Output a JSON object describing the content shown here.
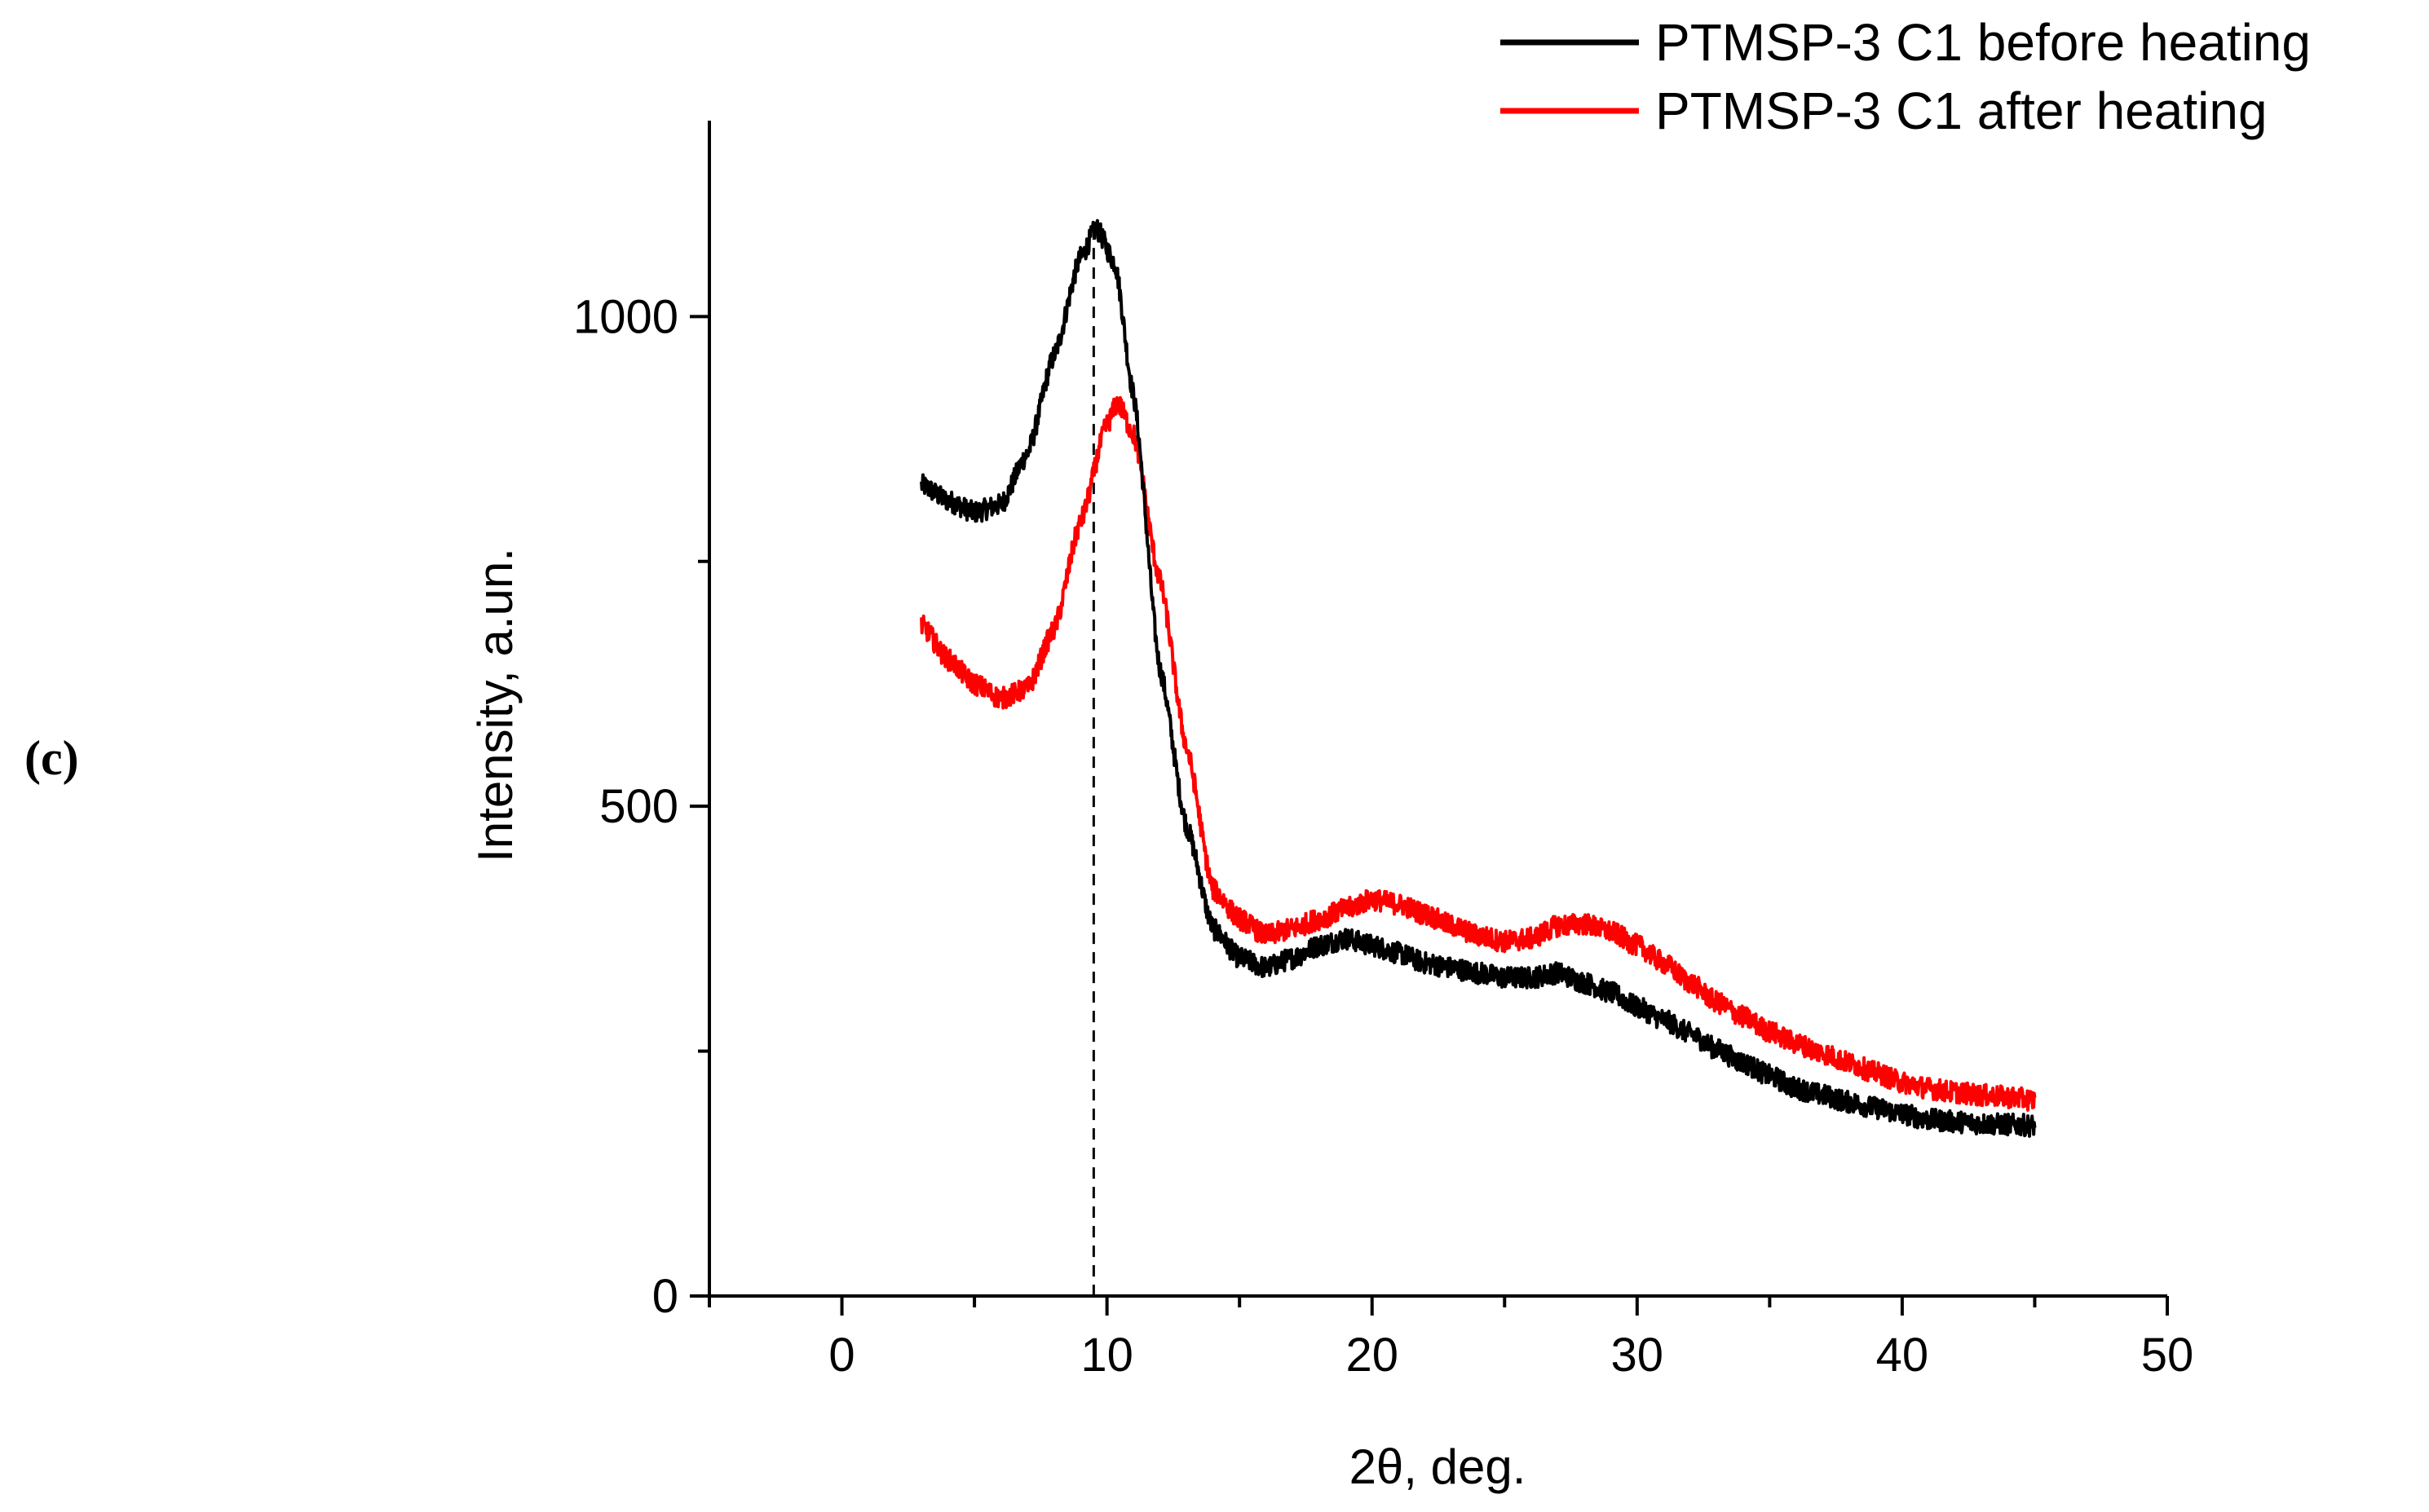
{
  "panel_label": "(c)",
  "chart_data": {
    "type": "line",
    "title": "",
    "xlabel": "2θ, deg.",
    "ylabel": "Intensity, a.un.",
    "xlim": [
      -5,
      50
    ],
    "ylim": [
      0,
      1200
    ],
    "xticks": [
      0,
      10,
      20,
      30,
      40,
      50
    ],
    "xtick_labels": [
      "0",
      "10",
      "20",
      "30",
      "40",
      "50"
    ],
    "yticks": [
      0,
      500,
      1000
    ],
    "ytick_labels": [
      "0",
      "500",
      "1000"
    ],
    "x_minor_step": 5,
    "y_minor_step": 250,
    "grid": false,
    "legend_position": "top-right, above plot",
    "reference_line": {
      "x": 9.5,
      "style": "dashed",
      "color": "#000000"
    },
    "series": [
      {
        "name": "PTMSP-3 C1 before heating",
        "color": "#000000",
        "points": [
          [
            3,
            828
          ],
          [
            4,
            812
          ],
          [
            5,
            800
          ],
          [
            6,
            808
          ],
          [
            7,
            860
          ],
          [
            8,
            960
          ],
          [
            9,
            1060
          ],
          [
            9.6,
            1090
          ],
          [
            10.3,
            1055
          ],
          [
            11,
            920
          ],
          [
            12,
            640
          ],
          [
            13,
            480
          ],
          [
            14,
            375
          ],
          [
            15,
            345
          ],
          [
            16,
            335
          ],
          [
            17,
            345
          ],
          [
            18,
            358
          ],
          [
            19,
            365
          ],
          [
            20,
            358
          ],
          [
            21,
            350
          ],
          [
            22,
            340
          ],
          [
            23,
            335
          ],
          [
            24,
            330
          ],
          [
            25,
            325
          ],
          [
            26,
            325
          ],
          [
            27,
            330
          ],
          [
            28,
            320
          ],
          [
            29,
            310
          ],
          [
            30,
            295
          ],
          [
            31,
            282
          ],
          [
            32,
            268
          ],
          [
            33,
            252
          ],
          [
            34,
            238
          ],
          [
            35,
            225
          ],
          [
            36,
            212
          ],
          [
            37,
            205
          ],
          [
            38,
            198
          ],
          [
            39,
            192
          ],
          [
            40,
            186
          ],
          [
            41,
            180
          ],
          [
            42,
            178
          ],
          [
            43,
            176
          ],
          [
            44,
            175
          ],
          [
            45,
            174
          ]
        ]
      },
      {
        "name": "PTMSP-3 C1 after heating",
        "color": "#ff0000",
        "points": [
          [
            3,
            685
          ],
          [
            4,
            650
          ],
          [
            5,
            625
          ],
          [
            6,
            610
          ],
          [
            7,
            620
          ],
          [
            8,
            680
          ],
          [
            9,
            790
          ],
          [
            10,
            890
          ],
          [
            10.4,
            912
          ],
          [
            11,
            880
          ],
          [
            12,
            730
          ],
          [
            13,
            560
          ],
          [
            14,
            415
          ],
          [
            15,
            385
          ],
          [
            16,
            368
          ],
          [
            17,
            375
          ],
          [
            18,
            385
          ],
          [
            19,
            395
          ],
          [
            20,
            405
          ],
          [
            21,
            400
          ],
          [
            22,
            390
          ],
          [
            23,
            378
          ],
          [
            24,
            368
          ],
          [
            25,
            362
          ],
          [
            26,
            365
          ],
          [
            27,
            378
          ],
          [
            28,
            380
          ],
          [
            29,
            372
          ],
          [
            30,
            358
          ],
          [
            31,
            340
          ],
          [
            32,
            320
          ],
          [
            33,
            300
          ],
          [
            34,
            285
          ],
          [
            35,
            270
          ],
          [
            36,
            258
          ],
          [
            37,
            248
          ],
          [
            38,
            238
          ],
          [
            39,
            228
          ],
          [
            40,
            218
          ],
          [
            41,
            212
          ],
          [
            42,
            208
          ],
          [
            43,
            205
          ],
          [
            44,
            203
          ],
          [
            45,
            200
          ]
        ]
      }
    ]
  }
}
